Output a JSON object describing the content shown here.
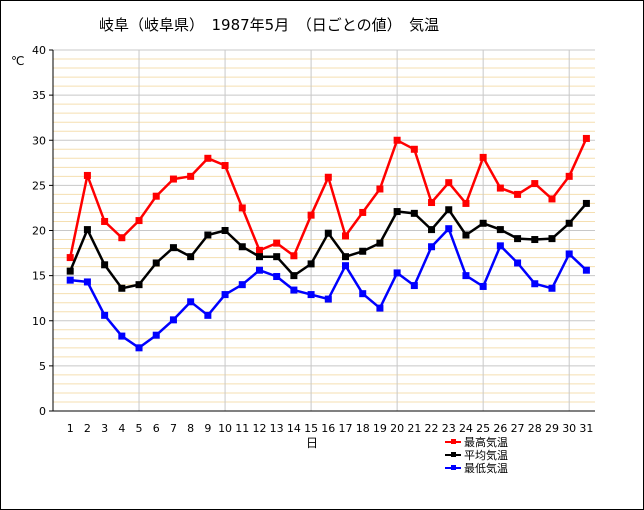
{
  "title": "岐阜（岐阜県）　1987年5月　（日ごとの値）　気温",
  "chart_data": {
    "type": "line",
    "ylabel": "℃",
    "xlabel": "日",
    "ylim": [
      0,
      40
    ],
    "yticks": [
      0,
      5,
      10,
      15,
      20,
      25,
      30,
      35,
      40
    ],
    "x": [
      1,
      2,
      3,
      4,
      5,
      6,
      7,
      8,
      9,
      10,
      11,
      12,
      13,
      14,
      15,
      16,
      17,
      18,
      19,
      20,
      21,
      22,
      23,
      24,
      25,
      26,
      27,
      28,
      29,
      30,
      31
    ],
    "legend_position": "bottom-right",
    "grid": true,
    "series": [
      {
        "name": "最高気温",
        "color": "#ff0000",
        "values": [
          17.0,
          26.1,
          21.0,
          19.2,
          21.1,
          23.8,
          25.7,
          26.0,
          28.0,
          27.2,
          22.5,
          17.8,
          18.6,
          17.2,
          21.7,
          25.9,
          19.4,
          22.0,
          24.6,
          30.0,
          29.0,
          23.1,
          25.3,
          23.0,
          28.1,
          24.7,
          24.0,
          25.2,
          23.5,
          26.0,
          30.2
        ]
      },
      {
        "name": "平均気温",
        "color": "#000000",
        "values": [
          15.5,
          20.1,
          16.2,
          13.6,
          14.0,
          16.4,
          18.1,
          17.1,
          19.5,
          20.0,
          18.2,
          17.1,
          17.1,
          15.0,
          16.3,
          19.7,
          17.1,
          17.7,
          18.6,
          22.1,
          21.9,
          20.1,
          22.3,
          19.5,
          20.8,
          20.1,
          19.1,
          19.0,
          19.1,
          20.8,
          23.0
        ]
      },
      {
        "name": "最低気温",
        "color": "#0000ff",
        "values": [
          14.5,
          14.3,
          10.6,
          8.3,
          7.0,
          8.4,
          10.1,
          12.1,
          10.6,
          12.9,
          14.0,
          15.6,
          14.9,
          13.4,
          12.9,
          12.4,
          16.1,
          13.0,
          11.4,
          15.3,
          13.9,
          18.2,
          20.2,
          15.0,
          13.8,
          18.3,
          16.4,
          14.1,
          13.6,
          17.4,
          15.6
        ]
      }
    ]
  }
}
